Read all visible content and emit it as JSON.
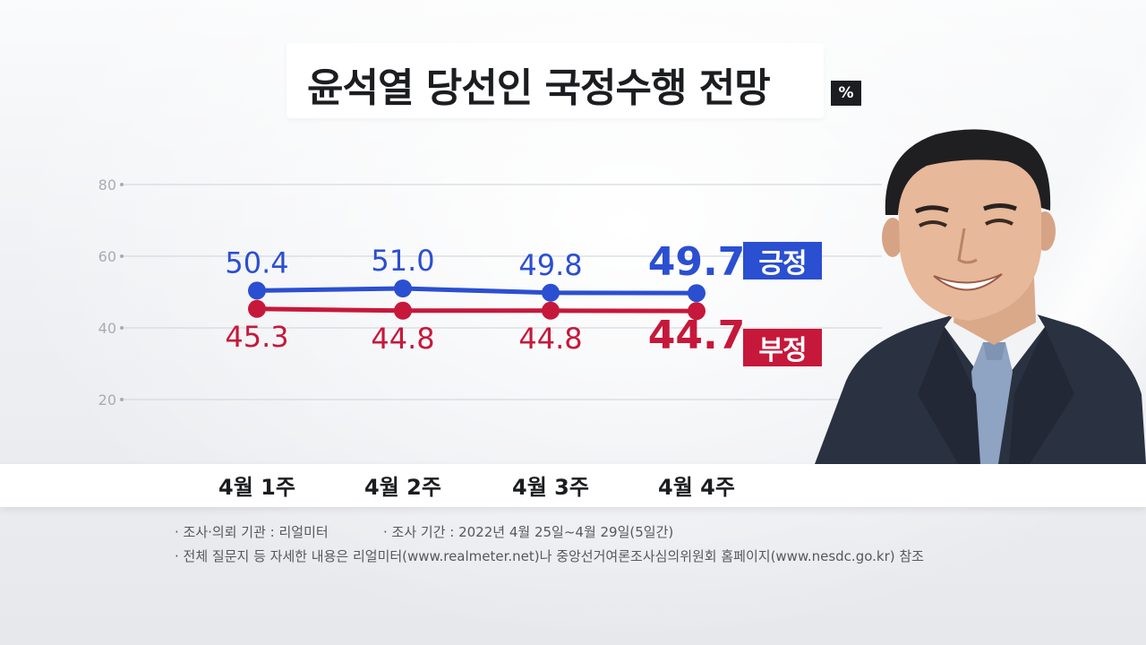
{
  "title": "윤석열 당선인 국정수행 전망",
  "unit": "%",
  "legend": {
    "positive": "긍정",
    "negative": "부정"
  },
  "colors": {
    "positive": "#2b4fd1",
    "negative": "#c6183b",
    "grid": "#cfd2d8",
    "tick": "#a8acb3"
  },
  "chart_data": {
    "type": "line",
    "title": "윤석열 당선인 국정수행 전망",
    "categories": [
      "4월 1주",
      "4월 2주",
      "4월 3주",
      "4월 4주"
    ],
    "yticks": [
      "80",
      "60",
      "40",
      "20"
    ],
    "ylim": [
      20,
      80
    ],
    "grid": true,
    "series": [
      {
        "name": "긍정",
        "values": [
          50.4,
          51.0,
          49.8,
          49.7
        ],
        "labels": [
          "50.4",
          "51.0",
          "49.8",
          "49.7"
        ]
      },
      {
        "name": "부정",
        "values": [
          45.3,
          44.8,
          44.8,
          44.7
        ],
        "labels": [
          "45.3",
          "44.8",
          "44.8",
          "44.7"
        ]
      }
    ]
  },
  "notes": {
    "agency": "· 조사·의뢰 기관 : 리얼미터",
    "period": "· 조사 기간 : 2022년 4월 25일~4월 29일(5일간)",
    "reference": "· 전체 질문지 등 자세한 내용은 리얼미터(www.realmeter.net)나 중앙선거여론조사심의위원회 홈페이지(www.nesdc.go.kr) 참조"
  }
}
